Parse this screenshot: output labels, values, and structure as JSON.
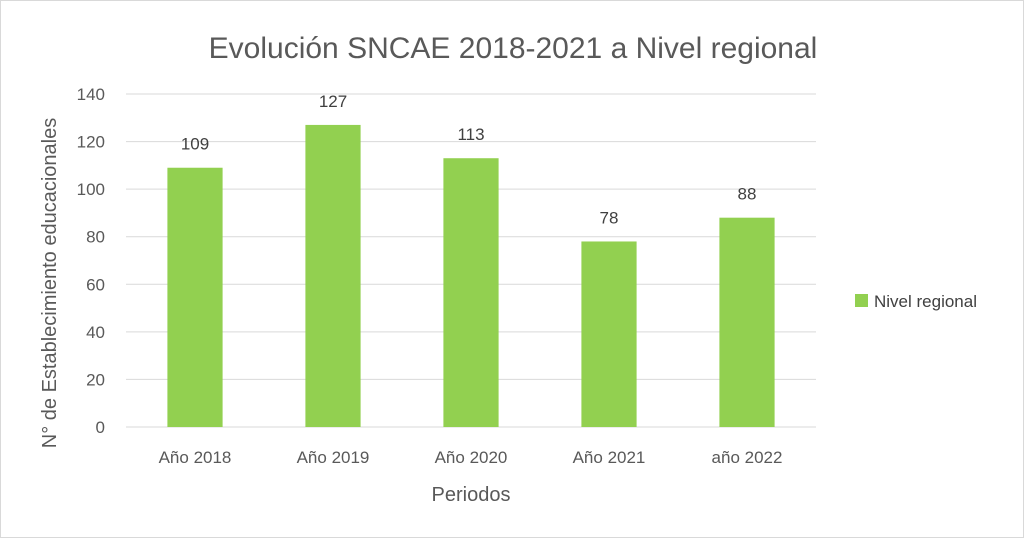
{
  "chart_data": {
    "type": "bar",
    "title": "Evolución SNCAE 2018-2021 a Nivel regional",
    "xlabel": "Periodos",
    "ylabel": "N° de Establecimiento educacionales",
    "categories": [
      "Año 2018",
      "Año 2019",
      "Año 2020",
      "Año 2021",
      "año 2022"
    ],
    "series": [
      {
        "name": "Nivel regional",
        "values": [
          109,
          127,
          113,
          78,
          88
        ],
        "color": "#92d050"
      }
    ],
    "ylim": [
      0,
      140
    ],
    "yticks": [
      0,
      20,
      40,
      60,
      80,
      100,
      120,
      140
    ],
    "grid": true,
    "data_labels": true,
    "legend_position": "right"
  }
}
